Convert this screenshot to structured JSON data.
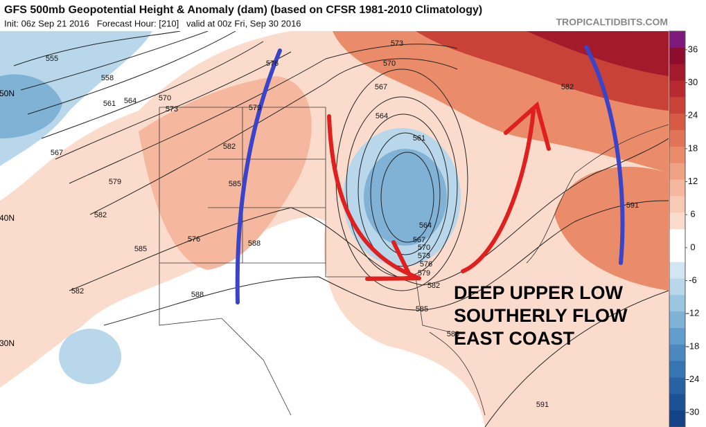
{
  "header": {
    "title": "GFS 500mb Geopotential Height & Anomaly (dam) (based on CFSR 1981-2010 Climatology)",
    "subtitle": "Init: 06z Sep 21 2016   Forecast Hour: [210]   valid at 00z Fri, Sep 30 2016",
    "site": "TROPICALTIDBITS.COM"
  },
  "latitude_labels": [
    "50N",
    "40N",
    "30N"
  ],
  "contour_labels": [
    555,
    558,
    561,
    564,
    567,
    570,
    573,
    576,
    579,
    579,
    582,
    582,
    582,
    585,
    585,
    588,
    588,
    576,
    573,
    570,
    567,
    564,
    561,
    564,
    567,
    570,
    573,
    576,
    579,
    582,
    585,
    588,
    582,
    591,
    591
  ],
  "annotation": [
    "DEEP UPPER LOW",
    "SOUTHERLY FLOW",
    "EAST COAST"
  ],
  "colorbar": {
    "lim": [
      -33,
      39
    ],
    "ticks": [
      36,
      30,
      24,
      18,
      12,
      6,
      0,
      -6,
      -12,
      -18,
      -24,
      -30
    ],
    "colors": [
      "#7e1a7e",
      "#8e0c2c",
      "#a31a2b",
      "#b82a2f",
      "#c94238",
      "#d75a45",
      "#e17357",
      "#ea8c6a",
      "#f0a384",
      "#f5b89e",
      "#f8cab5",
      "#fbdccc",
      "#ffffff",
      "#ffffff",
      "#d2e6f1",
      "#b8d7ea",
      "#9cc5e1",
      "#80b2d6",
      "#629dcb",
      "#4a88bf",
      "#3774b2",
      "#2862a4",
      "#1d5196",
      "#134287"
    ]
  }
}
